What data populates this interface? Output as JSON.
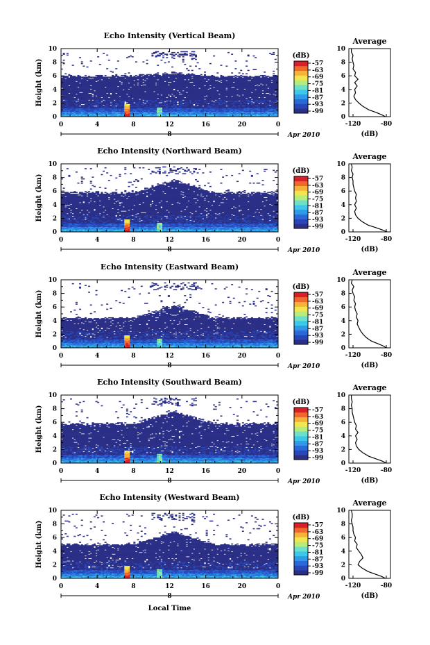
{
  "figure": {
    "xlabel": "Local Time",
    "date_label": "Apr 2010",
    "day_label": "8",
    "colorbar_unit": "(dB)",
    "colorbar_ticks": [
      "-57",
      "-63",
      "-69",
      "-75",
      "-81",
      "-87",
      "-93",
      "-99"
    ],
    "colormap": [
      "#2b2f86",
      "#2846b8",
      "#2a6ad8",
      "#2e9ae8",
      "#3cc8e8",
      "#6fe0c8",
      "#b8ec7a",
      "#f2e650",
      "#f7b23a",
      "#f0682c",
      "#d8202a"
    ]
  },
  "chart_data": [
    {
      "type": "heatmap",
      "title": "Echo Intensity (Vertical Beam)",
      "xlabel": "",
      "ylabel": "Height (km)",
      "xlim": [
        0,
        24
      ],
      "ylim": [
        0,
        10
      ],
      "xticks": [
        "0",
        "4",
        "8",
        "12",
        "16",
        "20",
        "0"
      ],
      "yticks": [
        "0",
        "2",
        "4",
        "6",
        "8",
        "10"
      ],
      "profile": {
        "title": "Average",
        "xlabel": "(dB)",
        "xticks": [
          "-120",
          "-80"
        ],
        "xlim": [
          -125,
          -75
        ],
        "height_km": [
          0,
          0.3,
          0.6,
          1.0,
          1.5,
          2.0,
          2.5,
          3.0,
          3.5,
          4.0,
          4.5,
          5.0,
          5.5,
          6.0,
          6.5,
          7.0,
          7.5,
          8.0,
          8.5,
          9.0,
          9.5,
          10.0
        ],
        "db": [
          -81,
          -86,
          -92,
          -101,
          -108,
          -113,
          -117,
          -119,
          -117,
          -118,
          -115,
          -118,
          -114,
          -118,
          -117,
          -120,
          -119,
          -120,
          -121,
          -120,
          -122,
          -122
        ]
      }
    },
    {
      "type": "heatmap",
      "title": "Echo Intensity (Northward Beam)",
      "xlabel": "",
      "ylabel": "Height (km)",
      "xlim": [
        0,
        24
      ],
      "ylim": [
        0,
        10
      ],
      "xticks": [
        "0",
        "4",
        "8",
        "12",
        "16",
        "20",
        "0"
      ],
      "yticks": [
        "0",
        "2",
        "4",
        "6",
        "8",
        "10"
      ],
      "profile": {
        "title": "Average",
        "xlabel": "(dB)",
        "xticks": [
          "-120",
          "-80"
        ],
        "xlim": [
          -125,
          -75
        ],
        "height_km": [
          0,
          0.3,
          0.6,
          1.0,
          1.5,
          2.0,
          2.5,
          3.0,
          3.5,
          4.0,
          4.5,
          5.0,
          5.5,
          6.0,
          6.5,
          7.0,
          7.5,
          8.0,
          8.5,
          9.0,
          9.5,
          10.0
        ],
        "db": [
          -79,
          -85,
          -92,
          -102,
          -109,
          -114,
          -117,
          -118,
          -116,
          -118,
          -116,
          -117,
          -116,
          -118,
          -119,
          -120,
          -120,
          -121,
          -120,
          -122,
          -121,
          -122
        ]
      }
    },
    {
      "type": "heatmap",
      "title": "Echo Intensity (Eastward Beam)",
      "xlabel": "",
      "ylabel": "Height (km)",
      "xlim": [
        0,
        24
      ],
      "ylim": [
        0,
        10
      ],
      "xticks": [
        "0",
        "4",
        "8",
        "12",
        "16",
        "20",
        "0"
      ],
      "yticks": [
        "0",
        "2",
        "4",
        "6",
        "8",
        "10"
      ],
      "profile": {
        "title": "Average",
        "xlabel": "(dB)",
        "xticks": [
          "-120",
          "-80"
        ],
        "xlim": [
          -125,
          -75
        ],
        "height_km": [
          0,
          0.3,
          0.6,
          1.0,
          1.5,
          2.0,
          2.5,
          3.0,
          3.5,
          4.0,
          4.5,
          5.0,
          5.5,
          6.0,
          6.5,
          7.0,
          7.5,
          8.0,
          8.5,
          9.0,
          9.5,
          10.0
        ],
        "db": [
          -80,
          -84,
          -90,
          -98,
          -104,
          -108,
          -111,
          -113,
          -115,
          -114,
          -116,
          -115,
          -117,
          -118,
          -117,
          -119,
          -118,
          -120,
          -121,
          -119,
          -122,
          -121
        ]
      }
    },
    {
      "type": "heatmap",
      "title": "Echo Intensity (Southward Beam)",
      "xlabel": "",
      "ylabel": "Height (km)",
      "xlim": [
        0,
        24
      ],
      "ylim": [
        0,
        10
      ],
      "xticks": [
        "0",
        "4",
        "8",
        "12",
        "16",
        "20",
        "0"
      ],
      "yticks": [
        "0",
        "2",
        "4",
        "6",
        "8",
        "10"
      ],
      "profile": {
        "title": "Average",
        "xlabel": "(dB)",
        "xticks": [
          "-120",
          "-80"
        ],
        "xlim": [
          -125,
          -75
        ],
        "height_km": [
          0,
          0.3,
          0.6,
          1.0,
          1.5,
          2.0,
          2.5,
          3.0,
          3.5,
          4.0,
          4.5,
          5.0,
          5.5,
          6.0,
          6.5,
          7.0,
          7.5,
          8.0,
          8.5,
          9.0,
          9.5,
          10.0
        ],
        "db": [
          -80,
          -85,
          -92,
          -101,
          -108,
          -113,
          -116,
          -117,
          -115,
          -117,
          -114,
          -117,
          -116,
          -118,
          -119,
          -120,
          -121,
          -121,
          -122,
          -121,
          -122,
          -122
        ]
      }
    },
    {
      "type": "heatmap",
      "title": "Echo Intensity (Westward Beam)",
      "xlabel": "",
      "ylabel": "Height (km)",
      "xlim": [
        0,
        24
      ],
      "ylim": [
        0,
        10
      ],
      "xticks": [
        "0",
        "4",
        "8",
        "12",
        "16",
        "20",
        "0"
      ],
      "yticks": [
        "0",
        "2",
        "4",
        "6",
        "8",
        "10"
      ],
      "profile": {
        "title": "Average",
        "xlabel": "(dB)",
        "xticks": [
          "-120",
          "-80"
        ],
        "xlim": [
          -125,
          -75
        ],
        "height_km": [
          0,
          0.3,
          0.6,
          1.0,
          1.5,
          2.0,
          2.5,
          3.0,
          3.5,
          4.0,
          4.5,
          5.0,
          5.5,
          6.0,
          6.5,
          7.0,
          7.5,
          8.0,
          8.5,
          9.0,
          9.5,
          10.0
        ],
        "db": [
          -81,
          -86,
          -93,
          -102,
          -109,
          -114,
          -112,
          -108,
          -110,
          -113,
          -116,
          -115,
          -118,
          -117,
          -119,
          -120,
          -120,
          -121,
          -122,
          -121,
          -121,
          -122
        ]
      }
    }
  ]
}
